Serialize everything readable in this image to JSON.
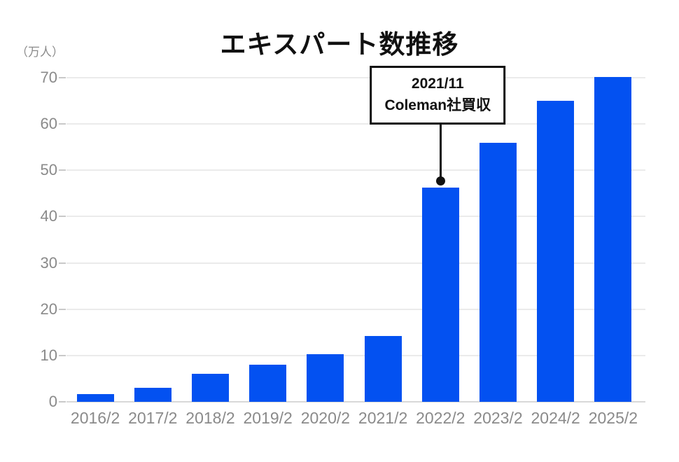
{
  "title": "エキスパート数推移",
  "unit_label": "（万人）",
  "annotation": {
    "line1": "2021/11",
    "line2": "Coleman社買収",
    "target_category": "2022/2"
  },
  "colors": {
    "bar": "#0351f1",
    "grid": "#ebebeb",
    "baseline": "#d8d8d8",
    "axis_text": "#8a8a8a",
    "title_text": "#111111",
    "annotation_border": "#111111",
    "annotation_bg": "#ffffff"
  },
  "chart_data": {
    "type": "bar",
    "categories": [
      "2016/2",
      "2017/2",
      "2018/2",
      "2019/2",
      "2020/2",
      "2021/2",
      "2022/2",
      "2023/2",
      "2024/2",
      "2025/2"
    ],
    "values": [
      1.6,
      3.1,
      6.0,
      8.0,
      10.3,
      14.2,
      46.3,
      56.0,
      65.0,
      70.2
    ],
    "title": "エキスパート数推移",
    "xlabel": "",
    "ylabel": "（万人）",
    "ylim": [
      0,
      70
    ],
    "yticks": [
      0,
      10,
      20,
      30,
      40,
      50,
      60,
      70
    ],
    "grid": true,
    "legend": false,
    "annotation": {
      "text": "2021/11 Coleman社買収",
      "target_category": "2022/2",
      "target_value": 46.3
    }
  }
}
